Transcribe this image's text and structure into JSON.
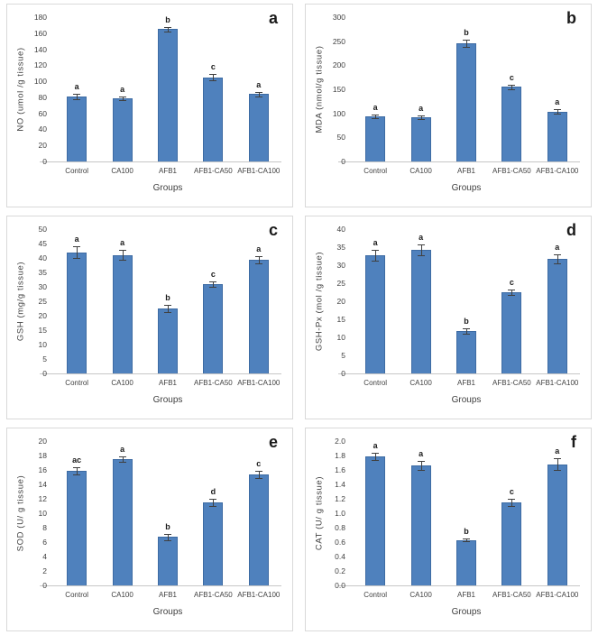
{
  "figure": {
    "background": "#ffffff",
    "panel_border_color": "#d9d9d9",
    "bar_fill_color": "#4f81bd",
    "bar_border_color": "#3d6ba3",
    "error_bar_color": "#404040",
    "axis_line_color": "#c6c6c6",
    "text_color": "#3f3f3f",
    "xlabel": "Groups",
    "categories": [
      "Control",
      "CA100",
      "AFB1",
      "AFB1-CA50",
      "AFB1-CA100"
    ]
  },
  "chart_data": [
    {
      "type": "bar",
      "panel_label": "a",
      "title": "",
      "xlabel": "Groups",
      "ylabel": "NO (umol /g tissue)",
      "categories": [
        "Control",
        "CA100",
        "AFB1",
        "AFB1-CA50",
        "AFB1-CA100"
      ],
      "values": [
        81,
        79,
        165,
        105,
        84
      ],
      "errors": [
        3,
        2,
        3,
        4,
        3
      ],
      "sig_letters": [
        "a",
        "a",
        "b",
        "c",
        "a"
      ],
      "ylim": [
        0,
        180
      ],
      "ytick_step": 20,
      "ytick_decimals": 0,
      "grid": false,
      "legend": "none"
    },
    {
      "type": "bar",
      "panel_label": "b",
      "title": "",
      "xlabel": "Groups",
      "ylabel": "MDA (nmol/g tissue)",
      "categories": [
        "Control",
        "CA100",
        "AFB1",
        "AFB1-CA50",
        "AFB1-CA100"
      ],
      "values": [
        94,
        92,
        246,
        155,
        104
      ],
      "errors": [
        4,
        3,
        8,
        5,
        4
      ],
      "sig_letters": [
        "a",
        "a",
        "b",
        "c",
        "a"
      ],
      "ylim": [
        0,
        300
      ],
      "ytick_step": 50,
      "ytick_decimals": 0,
      "grid": false,
      "legend": "none"
    },
    {
      "type": "bar",
      "panel_label": "c",
      "title": "",
      "xlabel": "Groups",
      "ylabel": "GSH (mg/g tissue)",
      "categories": [
        "Control",
        "CA100",
        "AFB1",
        "AFB1-CA50",
        "AFB1-CA100"
      ],
      "values": [
        42,
        41,
        22.5,
        31,
        39.3
      ],
      "errors": [
        2,
        1.7,
        1.2,
        1,
        1.3
      ],
      "sig_letters": [
        "a",
        "a",
        "b",
        "c",
        "a"
      ],
      "ylim": [
        0,
        50
      ],
      "ytick_step": 5,
      "ytick_decimals": 0,
      "grid": false,
      "legend": "none"
    },
    {
      "type": "bar",
      "panel_label": "d",
      "title": "",
      "xlabel": "Groups",
      "ylabel": "GSH-Px (mol /g tissue)",
      "categories": [
        "Control",
        "CA100",
        "AFB1",
        "AFB1-CA50",
        "AFB1-CA100"
      ],
      "values": [
        32.8,
        34.3,
        11.8,
        22.5,
        31.8
      ],
      "errors": [
        1.5,
        1.5,
        0.8,
        0.8,
        1.2
      ],
      "sig_letters": [
        "a",
        "a",
        "b",
        "c",
        "a"
      ],
      "ylim": [
        0,
        40
      ],
      "ytick_step": 5,
      "ytick_decimals": 0,
      "grid": false,
      "legend": "none"
    },
    {
      "type": "bar",
      "panel_label": "e",
      "title": "",
      "xlabel": "Groups",
      "ylabel": "SOD (U/ g tissue)",
      "categories": [
        "Control",
        "CA100",
        "AFB1",
        "AFB1-CA50",
        "AFB1-CA100"
      ],
      "values": [
        15.9,
        17.5,
        6.7,
        11.5,
        15.4
      ],
      "errors": [
        0.5,
        0.4,
        0.4,
        0.5,
        0.5
      ],
      "sig_letters": [
        "ac",
        "a",
        "b",
        "d",
        "c"
      ],
      "ylim": [
        0,
        20
      ],
      "ytick_step": 2,
      "ytick_decimals": 0,
      "grid": false,
      "legend": "none"
    },
    {
      "type": "bar",
      "panel_label": "f",
      "title": "",
      "xlabel": "Groups",
      "ylabel": "CAT (U/ g tissue)",
      "categories": [
        "Control",
        "CA100",
        "AFB1",
        "AFB1-CA50",
        "AFB1-CA100"
      ],
      "values": [
        1.79,
        1.66,
        0.63,
        1.15,
        1.68
      ],
      "errors": [
        0.05,
        0.06,
        0.02,
        0.05,
        0.08
      ],
      "sig_letters": [
        "a",
        "a",
        "b",
        "c",
        "a"
      ],
      "ylim": [
        0,
        2.0
      ],
      "ytick_step": 0.2,
      "ytick_decimals": 1,
      "grid": false,
      "legend": "none"
    }
  ]
}
